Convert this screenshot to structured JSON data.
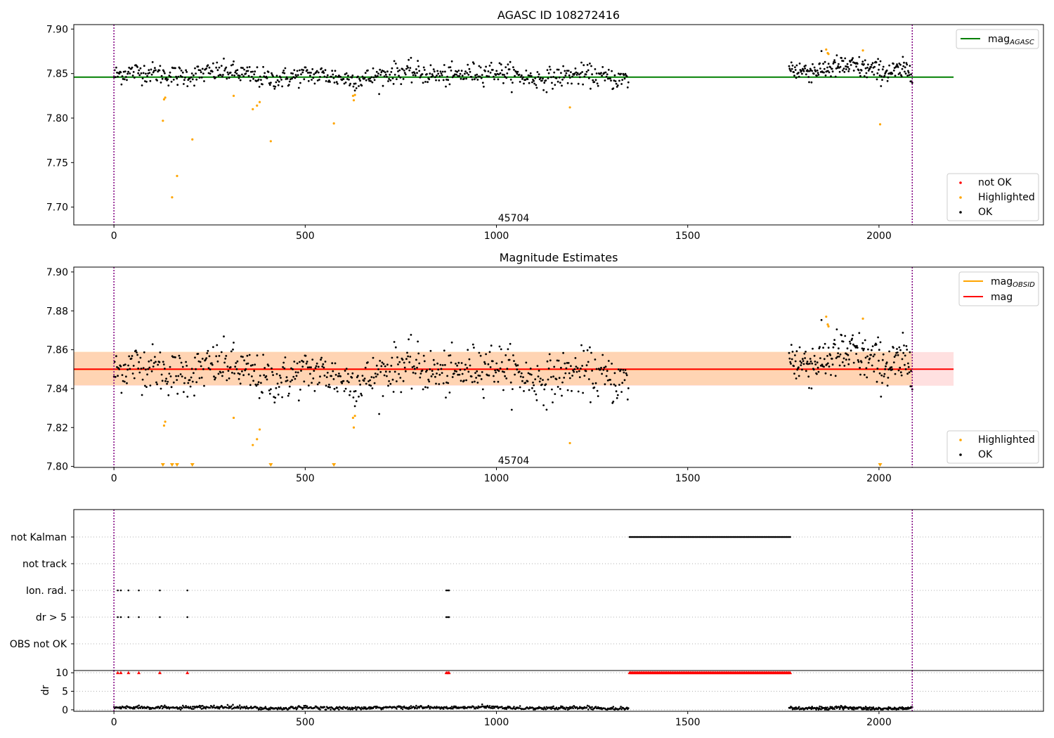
{
  "colors": {
    "ok": "#000000",
    "highlighted": "#ffa500",
    "not_ok": "#ff0000",
    "mag_agasc": "#008000",
    "mag_obsid": "#ffa500",
    "mag": "#ff0000",
    "band_obsid": "#ffa500",
    "band_mag": "#ff0000",
    "obs_boundary": "#800080",
    "dr_flag": "#ff0000"
  },
  "chart_data": [
    {
      "type": "scatter",
      "title": "AGASC ID 108272416",
      "xlabel": "",
      "ylabel": "",
      "xlim": [
        -105,
        2430
      ],
      "ylim": [
        7.68,
        7.905
      ],
      "x_ticks": [
        0,
        500,
        1000,
        1500,
        2000
      ],
      "y_ticks": [
        7.7,
        7.75,
        7.8,
        7.85,
        7.9
      ],
      "y_tick_labels": [
        "7.70",
        "7.75",
        "7.80",
        "7.85",
        "7.90"
      ],
      "reference_lines": [
        {
          "name": "mag_AGASC",
          "y": 7.846,
          "x_range": [
            -105,
            2195
          ],
          "color": "#008000"
        }
      ],
      "obs_boundaries": [
        0,
        2087
      ],
      "obsid_label": {
        "text": "45704",
        "x": 1045,
        "y": 7.688
      },
      "legends": [
        {
          "position": "top-right",
          "entries": [
            {
              "label": "mag",
              "subscript": "AGASC",
              "kind": "line",
              "color": "#008000"
            }
          ]
        },
        {
          "position": "bottom-right",
          "entries": [
            {
              "label": "not OK",
              "kind": "marker",
              "color": "#ff0000"
            },
            {
              "label": "Highlighted",
              "kind": "marker",
              "color": "#ffa500"
            },
            {
              "label": "OK",
              "kind": "marker",
              "color": "#000000"
            }
          ]
        }
      ],
      "ok_segments": [
        {
          "x_start": 0,
          "x_end": 1345,
          "n": 680,
          "y_mean": 7.848,
          "y_sd": 0.0065
        },
        {
          "x_start": 1765,
          "x_end": 2087,
          "n": 210,
          "y_mean": 7.857,
          "y_sd": 0.007
        }
      ],
      "highlighted_points": [
        {
          "x": 128,
          "y": 7.797
        },
        {
          "x": 131,
          "y": 7.821
        },
        {
          "x": 134,
          "y": 7.823
        },
        {
          "x": 152,
          "y": 7.711
        },
        {
          "x": 165,
          "y": 7.735
        },
        {
          "x": 205,
          "y": 7.776
        },
        {
          "x": 313,
          "y": 7.825
        },
        {
          "x": 363,
          "y": 7.81
        },
        {
          "x": 374,
          "y": 7.814
        },
        {
          "x": 381,
          "y": 7.818
        },
        {
          "x": 410,
          "y": 7.774
        },
        {
          "x": 575,
          "y": 7.794
        },
        {
          "x": 625,
          "y": 7.825
        },
        {
          "x": 627,
          "y": 7.82
        },
        {
          "x": 630,
          "y": 7.826
        },
        {
          "x": 1192,
          "y": 7.812
        },
        {
          "x": 1862,
          "y": 7.877
        },
        {
          "x": 1866,
          "y": 7.873
        },
        {
          "x": 1868,
          "y": 7.872
        },
        {
          "x": 1958,
          "y": 7.876
        },
        {
          "x": 2003,
          "y": 7.793
        }
      ]
    },
    {
      "type": "scatter",
      "title": "Magnitude Estimates",
      "xlabel": "",
      "ylabel": "",
      "xlim": [
        -105,
        2430
      ],
      "ylim": [
        7.7995,
        7.9025
      ],
      "x_ticks": [
        0,
        500,
        1000,
        1500,
        2000
      ],
      "y_ticks": [
        7.8,
        7.82,
        7.84,
        7.86,
        7.88,
        7.9
      ],
      "y_tick_labels": [
        "7.80",
        "7.82",
        "7.84",
        "7.86",
        "7.88",
        "7.90"
      ],
      "reference_lines": [
        {
          "name": "mag_OBSID",
          "y": 7.8499,
          "x_range": [
            -105,
            2087
          ],
          "color": "#ffa500"
        },
        {
          "name": "mag",
          "y": 7.85,
          "x_range": [
            -105,
            2195
          ],
          "color": "#ff0000"
        }
      ],
      "bands": [
        {
          "name": "mag",
          "y_range": [
            7.8415,
            7.8588
          ],
          "x_range": [
            -105,
            2195
          ],
          "color": "#ff0000",
          "opacity": 0.12
        },
        {
          "name": "mag_OBSID",
          "y_range": [
            7.8418,
            7.859
          ],
          "x_range": [
            -105,
            2087
          ],
          "color": "#ffa500",
          "opacity": 0.2
        }
      ],
      "obs_boundaries": [
        0,
        2087
      ],
      "obsid_label": {
        "text": "45704",
        "x": 1045,
        "y": 7.8032
      },
      "legends": [
        {
          "position": "top-right",
          "entries": [
            {
              "label": "mag",
              "subscript": "OBSID",
              "kind": "line",
              "color": "#ffa500"
            },
            {
              "label": "mag",
              "kind": "line",
              "color": "#ff0000"
            }
          ]
        },
        {
          "position": "bottom-right",
          "entries": [
            {
              "label": "Highlighted",
              "kind": "marker",
              "color": "#ffa500"
            },
            {
              "label": "OK",
              "kind": "marker",
              "color": "#000000"
            }
          ]
        }
      ],
      "ok_segments": [
        {
          "x_start": 0,
          "x_end": 1345,
          "n": 680,
          "y_mean": 7.848,
          "y_sd": 0.0065
        },
        {
          "x_start": 1765,
          "x_end": 2087,
          "n": 210,
          "y_mean": 7.857,
          "y_sd": 0.007
        }
      ],
      "highlighted_points": [
        {
          "x": 131,
          "y": 7.821
        },
        {
          "x": 134,
          "y": 7.823
        },
        {
          "x": 313,
          "y": 7.825
        },
        {
          "x": 363,
          "y": 7.811
        },
        {
          "x": 374,
          "y": 7.814
        },
        {
          "x": 381,
          "y": 7.819
        },
        {
          "x": 625,
          "y": 7.825
        },
        {
          "x": 627,
          "y": 7.82
        },
        {
          "x": 630,
          "y": 7.826
        },
        {
          "x": 1192,
          "y": 7.812
        },
        {
          "x": 1862,
          "y": 7.877
        },
        {
          "x": 1866,
          "y": 7.873
        },
        {
          "x": 1868,
          "y": 7.872
        },
        {
          "x": 1958,
          "y": 7.876
        }
      ],
      "below_range_markers": [
        128,
        152,
        165,
        205,
        410,
        575,
        2003
      ]
    },
    {
      "type": "scatter",
      "title": "",
      "xlabel": "",
      "ylabel": "",
      "xlim": [
        -105,
        2430
      ],
      "categories": [
        "not Kalman",
        "not track",
        "Ion. rad.",
        "dr > 5",
        "OBS not OK"
      ],
      "category_ticks": [
        "not Kalman",
        "not track",
        "Ion. rad.",
        "dr > 5",
        "OBS not OK"
      ],
      "obs_boundaries": [
        0,
        2087
      ],
      "flags": {
        "not Kalman": [
          {
            "x_start": 1348,
            "x_end": 1768,
            "step": 3
          }
        ],
        "not track": [],
        "Ion. rad.": [
          {
            "points": [
              10,
              18,
              38,
              65,
              120,
              192,
              869,
              873,
              876
            ]
          }
        ],
        "dr > 5": [
          {
            "points": [
              10,
              18,
              38,
              65,
              120,
              192,
              869,
              873,
              876
            ]
          }
        ],
        "OBS not OK": []
      }
    },
    {
      "type": "scatter",
      "title": "",
      "xlabel": "",
      "ylabel": "dr",
      "xlim": [
        -105,
        2430
      ],
      "ylim": [
        -0.4,
        10.6
      ],
      "y_ticks": [
        0,
        5,
        10
      ],
      "y_tick_labels": [
        "0",
        "5",
        "10"
      ],
      "x_ticks": [
        0,
        500,
        1000,
        1500,
        2000
      ],
      "obs_boundaries": [
        0,
        2087
      ],
      "dr_segments": [
        {
          "x_start": 0,
          "x_end": 1345,
          "n": 680,
          "y_mean": 0.55,
          "y_sd": 0.25
        },
        {
          "x_start": 1765,
          "x_end": 2087,
          "n": 210,
          "y_mean": 0.5,
          "y_sd": 0.25
        }
      ],
      "dr_clipped_markers": {
        "y": 10,
        "points": [
          10,
          18,
          38,
          65,
          120,
          192,
          869,
          873,
          876
        ],
        "range": {
          "x_start": 1348,
          "x_end": 1768,
          "step": 3
        }
      }
    }
  ]
}
